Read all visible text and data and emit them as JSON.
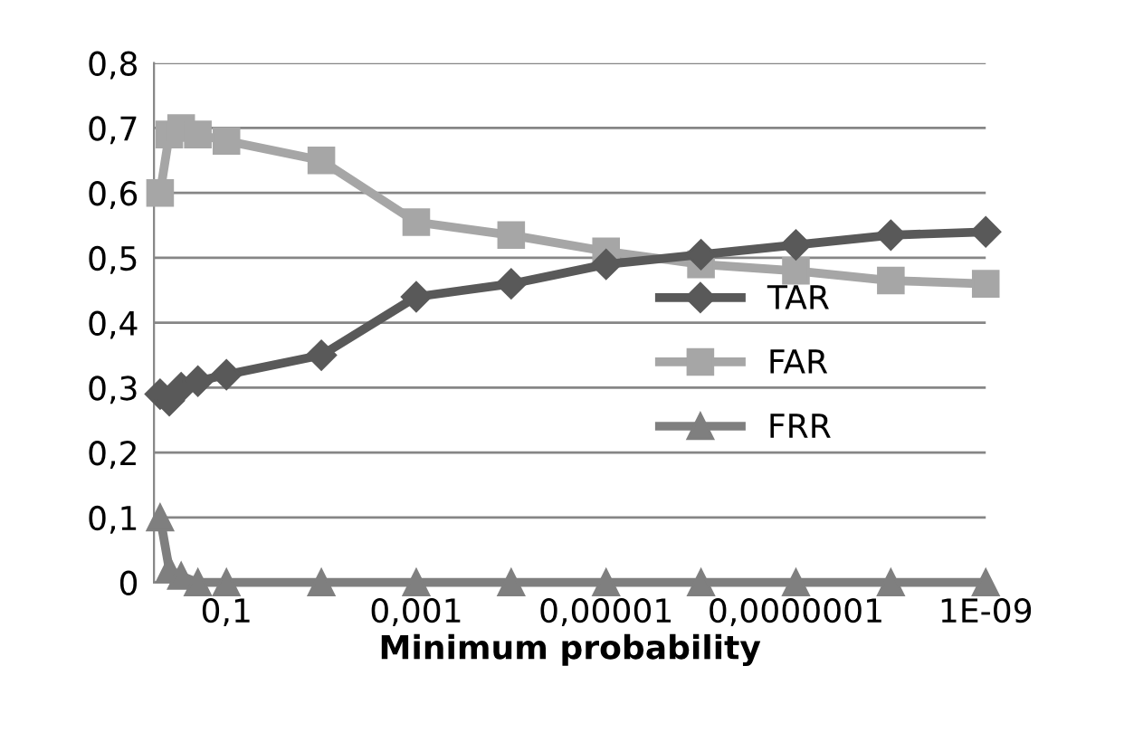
{
  "chart_data": {
    "type": "line",
    "xlabel": "Minimum probability",
    "log": "x",
    "x": [
      0.5,
      0.4,
      0.3,
      0.2,
      0.1,
      0.01,
      0.001,
      0.0001,
      1e-05,
      1e-06,
      1e-07,
      1e-08,
      1e-09
    ],
    "series": [
      {
        "name": "TAR",
        "color": "#595959",
        "marker": "diamond",
        "values": [
          0.29,
          0.28,
          0.3,
          0.31,
          0.32,
          0.35,
          0.44,
          0.46,
          0.49,
          0.505,
          0.52,
          0.535,
          0.54
        ]
      },
      {
        "name": "FAR",
        "color": "#a6a6a6",
        "marker": "square",
        "values": [
          0.6,
          0.69,
          0.7,
          0.69,
          0.68,
          0.65,
          0.555,
          0.535,
          0.51,
          0.49,
          0.48,
          0.465,
          0.46
        ]
      },
      {
        "name": "FRR",
        "color": "#7f7f7f",
        "marker": "triangle",
        "values": [
          0.1,
          0.02,
          0.01,
          0,
          0,
          0,
          0,
          0,
          0,
          0,
          0,
          0,
          0
        ]
      }
    ],
    "xlim": [
      0.58,
      1e-09
    ],
    "xticks": [
      {
        "value": 0.1,
        "label": "0,1"
      },
      {
        "value": 0.001,
        "label": "0,001"
      },
      {
        "value": 1e-05,
        "label": "0,00001"
      },
      {
        "value": 1e-07,
        "label": "0,0000001"
      },
      {
        "value": 1e-09,
        "label": "1E-09"
      }
    ],
    "ylim": [
      0,
      0.8
    ],
    "yticks": [
      0,
      {
        "value": 0.1,
        "label": "0,1"
      },
      {
        "value": 0.2,
        "label": "0,2"
      },
      {
        "value": 0.3,
        "label": "0,3"
      },
      {
        "value": 0.4,
        "label": "0,4"
      },
      {
        "value": 0.5,
        "label": "0,5"
      },
      {
        "value": 0.6,
        "label": "0,6"
      },
      {
        "value": 0.7,
        "label": "0,7"
      },
      {
        "value": 0.8,
        "label": "0,8"
      }
    ],
    "grid": "y",
    "legend": "center right",
    "line_style": "solid"
  }
}
